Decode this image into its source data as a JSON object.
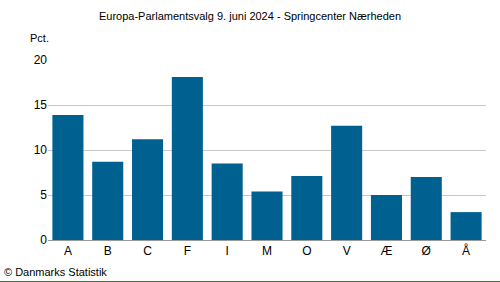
{
  "chart_data": {
    "type": "bar",
    "title": "Europa-Parlamentsvalg 9. juni 2024 - Springcenter Nærheden",
    "ylabel": "Pct.",
    "source": "© Danmarks Statistik",
    "categories": [
      "A",
      "B",
      "C",
      "F",
      "I",
      "M",
      "O",
      "V",
      "Æ",
      "Ø",
      "Å"
    ],
    "values": [
      13.9,
      8.7,
      11.2,
      18.1,
      8.5,
      5.4,
      7.1,
      12.7,
      5.0,
      7.0,
      3.1
    ],
    "color": "#00608f",
    "ylim": [
      0,
      20
    ],
    "yticks": [
      0,
      5,
      10,
      15,
      20
    ],
    "grid": true
  }
}
